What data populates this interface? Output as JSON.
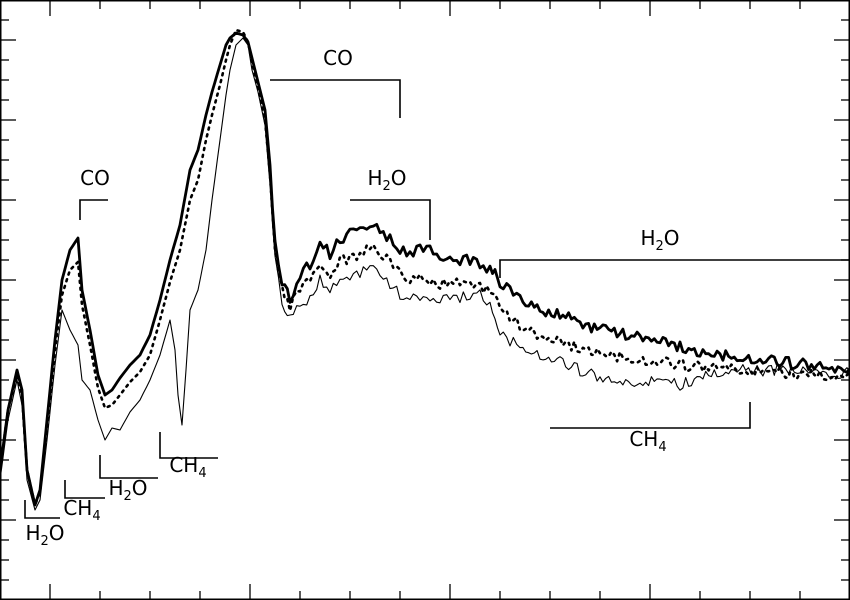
{
  "chart_data": {
    "type": "line",
    "title": "",
    "xlabel": "",
    "ylabel": "",
    "xlim": [
      0,
      850
    ],
    "ylim": [
      0,
      600
    ],
    "grid": false,
    "x_ticks": {
      "major": [
        50,
        250,
        450,
        650
      ],
      "minor_step": 50
    },
    "y_ticks": {
      "major": [
        40,
        120,
        200,
        280,
        360,
        440,
        520
      ],
      "minor_step": 20
    },
    "series": [
      {
        "id": "thick",
        "style": "thick",
        "points": [
          [
            0,
            470
          ],
          [
            8,
            410
          ],
          [
            17,
            370
          ],
          [
            22,
            390
          ],
          [
            27,
            470
          ],
          [
            35,
            505
          ],
          [
            40,
            490
          ],
          [
            47,
            420
          ],
          [
            55,
            340
          ],
          [
            62,
            280
          ],
          [
            70,
            250
          ],
          [
            78,
            238
          ],
          [
            82,
            290
          ],
          [
            90,
            330
          ],
          [
            98,
            375
          ],
          [
            105,
            395
          ],
          [
            112,
            390
          ],
          [
            120,
            378
          ],
          [
            130,
            365
          ],
          [
            140,
            355
          ],
          [
            150,
            335
          ],
          [
            160,
            300
          ],
          [
            170,
            260
          ],
          [
            180,
            225
          ],
          [
            190,
            170
          ],
          [
            198,
            150
          ],
          [
            206,
            115
          ],
          [
            212,
            92
          ],
          [
            220,
            65
          ],
          [
            226,
            45
          ],
          [
            230,
            38
          ],
          [
            236,
            33
          ],
          [
            243,
            35
          ],
          [
            248,
            42
          ],
          [
            252,
            58
          ],
          [
            258,
            82
          ],
          [
            265,
            110
          ],
          [
            270,
            165
          ],
          [
            275,
            240
          ],
          [
            282,
            280
          ],
          [
            290,
            300
          ],
          [
            300,
            275
          ],
          [
            310,
            265
          ],
          [
            320,
            240
          ],
          [
            330,
            255
          ],
          [
            340,
            240
          ],
          [
            350,
            235
          ],
          [
            360,
            230
          ],
          [
            370,
            222
          ],
          [
            380,
            232
          ],
          [
            390,
            240
          ],
          [
            400,
            250
          ],
          [
            410,
            255
          ],
          [
            420,
            250
          ],
          [
            430,
            250
          ],
          [
            440,
            258
          ],
          [
            450,
            255
          ],
          [
            460,
            262
          ],
          [
            470,
            260
          ],
          [
            480,
            262
          ],
          [
            490,
            270
          ],
          [
            495,
            275
          ],
          [
            500,
            285
          ],
          [
            510,
            290
          ],
          [
            520,
            298
          ],
          [
            540,
            310
          ],
          [
            560,
            315
          ],
          [
            580,
            322
          ],
          [
            600,
            330
          ],
          [
            620,
            334
          ],
          [
            640,
            338
          ],
          [
            660,
            342
          ],
          [
            680,
            347
          ],
          [
            700,
            352
          ],
          [
            720,
            354
          ],
          [
            740,
            357
          ],
          [
            760,
            360
          ],
          [
            780,
            362
          ],
          [
            800,
            364
          ],
          [
            820,
            367
          ],
          [
            835,
            372
          ],
          [
            850,
            368
          ]
        ]
      },
      {
        "id": "dotted",
        "style": "dotted",
        "points": [
          [
            0,
            470
          ],
          [
            8,
            410
          ],
          [
            17,
            375
          ],
          [
            22,
            395
          ],
          [
            27,
            470
          ],
          [
            35,
            505
          ],
          [
            40,
            492
          ],
          [
            47,
            430
          ],
          [
            55,
            350
          ],
          [
            62,
            295
          ],
          [
            70,
            270
          ],
          [
            78,
            262
          ],
          [
            82,
            305
          ],
          [
            90,
            345
          ],
          [
            98,
            388
          ],
          [
            105,
            408
          ],
          [
            112,
            405
          ],
          [
            120,
            395
          ],
          [
            130,
            382
          ],
          [
            140,
            372
          ],
          [
            150,
            355
          ],
          [
            160,
            320
          ],
          [
            170,
            282
          ],
          [
            180,
            250
          ],
          [
            190,
            200
          ],
          [
            198,
            180
          ],
          [
            206,
            140
          ],
          [
            212,
            115
          ],
          [
            220,
            85
          ],
          [
            226,
            60
          ],
          [
            230,
            45
          ],
          [
            236,
            30
          ],
          [
            243,
            32
          ],
          [
            248,
            42
          ],
          [
            252,
            62
          ],
          [
            258,
            88
          ],
          [
            265,
            120
          ],
          [
            270,
            175
          ],
          [
            275,
            248
          ],
          [
            282,
            290
          ],
          [
            290,
            308
          ],
          [
            300,
            290
          ],
          [
            310,
            280
          ],
          [
            320,
            262
          ],
          [
            330,
            275
          ],
          [
            340,
            262
          ],
          [
            350,
            258
          ],
          [
            360,
            252
          ],
          [
            370,
            248
          ],
          [
            380,
            255
          ],
          [
            390,
            262
          ],
          [
            400,
            272
          ],
          [
            410,
            280
          ],
          [
            420,
            278
          ],
          [
            430,
            280
          ],
          [
            440,
            285
          ],
          [
            450,
            282
          ],
          [
            460,
            285
          ],
          [
            470,
            282
          ],
          [
            480,
            285
          ],
          [
            490,
            292
          ],
          [
            495,
            300
          ],
          [
            500,
            310
          ],
          [
            510,
            318
          ],
          [
            520,
            326
          ],
          [
            540,
            338
          ],
          [
            560,
            343
          ],
          [
            580,
            348
          ],
          [
            600,
            352
          ],
          [
            620,
            356
          ],
          [
            640,
            360
          ],
          [
            660,
            362
          ],
          [
            680,
            365
          ],
          [
            700,
            367
          ],
          [
            720,
            368
          ],
          [
            740,
            370
          ],
          [
            760,
            372
          ],
          [
            780,
            372
          ],
          [
            800,
            374
          ],
          [
            820,
            375
          ],
          [
            835,
            376
          ],
          [
            850,
            373
          ]
        ]
      },
      {
        "id": "thin",
        "style": "thin",
        "points": [
          [
            0,
            480
          ],
          [
            8,
            420
          ],
          [
            17,
            380
          ],
          [
            22,
            405
          ],
          [
            27,
            480
          ],
          [
            35,
            510
          ],
          [
            40,
            500
          ],
          [
            47,
            440
          ],
          [
            55,
            365
          ],
          [
            62,
            310
          ],
          [
            70,
            330
          ],
          [
            78,
            345
          ],
          [
            82,
            380
          ],
          [
            90,
            390
          ],
          [
            98,
            420
          ],
          [
            105,
            440
          ],
          [
            112,
            428
          ],
          [
            120,
            430
          ],
          [
            130,
            412
          ],
          [
            140,
            400
          ],
          [
            150,
            380
          ],
          [
            160,
            355
          ],
          [
            170,
            320
          ],
          [
            175,
            350
          ],
          [
            178,
            395
          ],
          [
            182,
            425
          ],
          [
            186,
            370
          ],
          [
            190,
            310
          ],
          [
            198,
            290
          ],
          [
            206,
            250
          ],
          [
            212,
            200
          ],
          [
            220,
            140
          ],
          [
            226,
            95
          ],
          [
            230,
            70
          ],
          [
            236,
            45
          ],
          [
            243,
            38
          ],
          [
            248,
            45
          ],
          [
            252,
            70
          ],
          [
            258,
            92
          ],
          [
            265,
            125
          ],
          [
            270,
            185
          ],
          [
            275,
            258
          ],
          [
            282,
            302
          ],
          [
            290,
            318
          ],
          [
            300,
            305
          ],
          [
            310,
            298
          ],
          [
            320,
            280
          ],
          [
            330,
            292
          ],
          [
            340,
            282
          ],
          [
            350,
            275
          ],
          [
            360,
            272
          ],
          [
            370,
            268
          ],
          [
            380,
            278
          ],
          [
            390,
            285
          ],
          [
            400,
            295
          ],
          [
            410,
            300
          ],
          [
            420,
            298
          ],
          [
            430,
            300
          ],
          [
            440,
            302
          ],
          [
            450,
            298
          ],
          [
            460,
            298
          ],
          [
            470,
            295
          ],
          [
            480,
            292
          ],
          [
            490,
            305
          ],
          [
            495,
            318
          ],
          [
            500,
            332
          ],
          [
            510,
            340
          ],
          [
            520,
            345
          ],
          [
            540,
            355
          ],
          [
            560,
            362
          ],
          [
            580,
            370
          ],
          [
            600,
            378
          ],
          [
            620,
            385
          ],
          [
            640,
            382
          ],
          [
            660,
            380
          ],
          [
            680,
            385
          ],
          [
            700,
            378
          ],
          [
            720,
            372
          ],
          [
            740,
            368
          ],
          [
            760,
            372
          ],
          [
            780,
            370
          ],
          [
            800,
            372
          ],
          [
            820,
            375
          ],
          [
            835,
            378
          ],
          [
            850,
            372
          ]
        ]
      }
    ],
    "annotations": [
      {
        "id": "co-1",
        "text": "CO",
        "sub": "",
        "text_x": 95,
        "text_y": 185,
        "bracket": [
          [
            80,
            220
          ],
          [
            80,
            200
          ],
          [
            108,
            200
          ]
        ]
      },
      {
        "id": "co-2",
        "text": "CO",
        "sub": "",
        "text_x": 338,
        "text_y": 65,
        "bracket": [
          [
            270,
            80
          ],
          [
            400,
            80
          ],
          [
            400,
            118
          ]
        ]
      },
      {
        "id": "h2o-1",
        "text": "H",
        "sub": "2",
        "tail": "O",
        "text_x": 387,
        "text_y": 185,
        "bracket": [
          [
            350,
            200
          ],
          [
            430,
            200
          ],
          [
            430,
            240
          ]
        ]
      },
      {
        "id": "h2o-2",
        "text": "H",
        "sub": "2",
        "tail": "O",
        "text_x": 660,
        "text_y": 245,
        "bracket": [
          [
            500,
            278
          ],
          [
            500,
            260
          ],
          [
            850,
            260
          ]
        ]
      },
      {
        "id": "h2o-3",
        "text": "H",
        "sub": "2",
        "tail": "O",
        "text_x": 45,
        "text_y": 540,
        "bracket": [
          [
            25,
            500
          ],
          [
            25,
            518
          ],
          [
            60,
            518
          ]
        ]
      },
      {
        "id": "h2o-4",
        "text": "H",
        "sub": "2",
        "tail": "O",
        "text_x": 128,
        "text_y": 495,
        "bracket": [
          [
            100,
            455
          ],
          [
            100,
            478
          ],
          [
            158,
            478
          ]
        ]
      },
      {
        "id": "ch4-1",
        "text": "CH",
        "sub": "4",
        "tail": "",
        "text_x": 82,
        "text_y": 515,
        "bracket": [
          [
            65,
            480
          ],
          [
            65,
            498
          ],
          [
            105,
            498
          ]
        ]
      },
      {
        "id": "ch4-2",
        "text": "CH",
        "sub": "4",
        "tail": "",
        "text_x": 188,
        "text_y": 472,
        "bracket": [
          [
            160,
            432
          ],
          [
            160,
            458
          ],
          [
            218,
            458
          ]
        ]
      },
      {
        "id": "ch4-3",
        "text": "CH",
        "sub": "4",
        "tail": "",
        "text_x": 648,
        "text_y": 446,
        "bracket": [
          [
            550,
            428
          ],
          [
            750,
            428
          ],
          [
            750,
            402
          ]
        ]
      }
    ]
  }
}
